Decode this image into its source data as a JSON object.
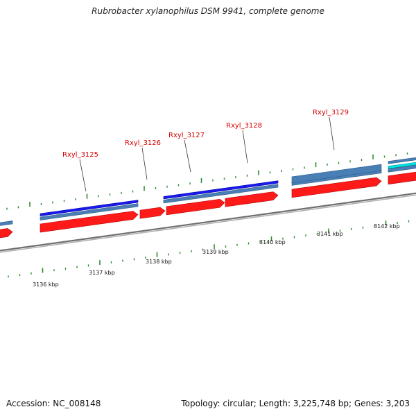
{
  "title": "Rubrobacter xylanophilus DSM 9941, complete genome",
  "footer": {
    "accession": "Accession: NC_008148",
    "summary": "Topology: circular; Length: 3,225,748 bp; Genes: 3,203"
  },
  "colors": {
    "cds": "#ff1a1a",
    "gene": "#4a7fb5",
    "feature_blue": "#1a1aee",
    "feature_cyan": "#00e5e5",
    "backbone": "#8a8a8a",
    "tick": "#2e8b2e",
    "label": "#d40000"
  },
  "ruler": {
    "unit": "kbp",
    "labels": [
      "3136 kbp",
      "3137 kbp",
      "3138 kbp",
      "3139 kbp",
      "3140 kbp",
      "3141 kbp",
      "3142 kbp"
    ]
  },
  "genes": [
    {
      "label": "Rxyl_3125"
    },
    {
      "label": "Rxyl_3126"
    },
    {
      "label": "Rxyl_3127"
    },
    {
      "label": "Rxyl_3128"
    },
    {
      "label": "Rxyl_3129"
    }
  ]
}
